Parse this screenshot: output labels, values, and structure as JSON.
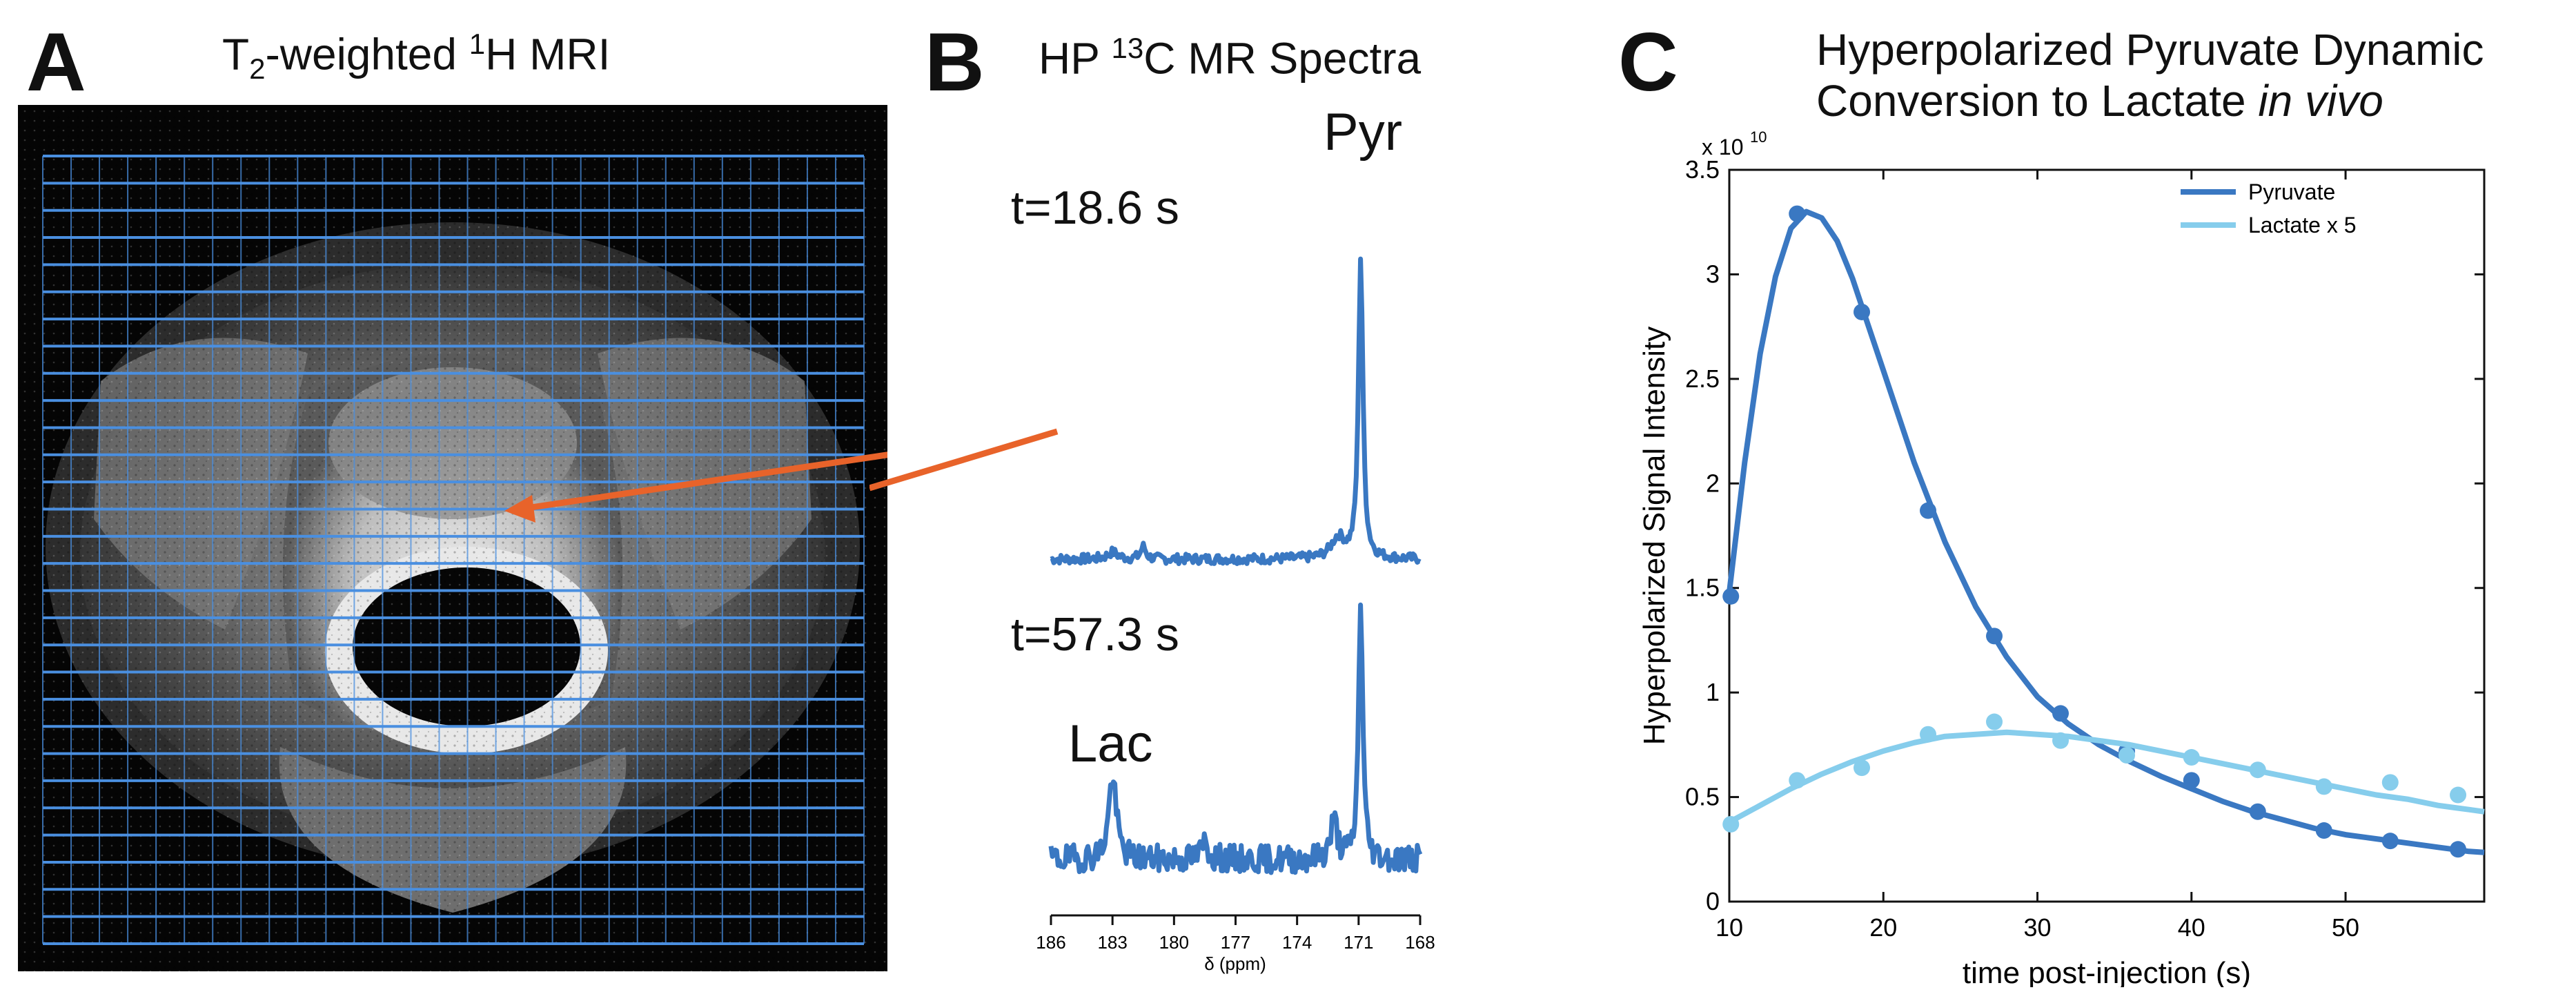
{
  "panels": {
    "a": {
      "letter": "A",
      "title_pre": "T",
      "title_sub": "2",
      "title_mid": "-weighted ",
      "title_sup": "1",
      "title_post": "H MRI"
    },
    "b": {
      "letter": "B",
      "title_pre": "HP ",
      "title_sup": "13",
      "title_post": "C MR Spectra",
      "peak_pyr": "Pyr",
      "peak_lac": "Lac",
      "time_1": "t=18.6 s",
      "time_2": "t=57.3 s",
      "axis_label": "δ (ppm)",
      "ticks": [
        "186",
        "183",
        "180",
        "177",
        "174",
        "171",
        "168"
      ]
    },
    "c": {
      "letter": "C",
      "title_line1": "Hyperpolarized Pyruvate Dynamic",
      "title_line2_pre": "Conversion to Lactate ",
      "title_line2_em": "in vivo"
    }
  },
  "colors": {
    "pyruvate": "#3a78c2",
    "lactate": "#86cdec",
    "arrow": "#e8632a",
    "grid": "#4a8fe0"
  },
  "chart_data": {
    "type": "line",
    "title": "Hyperpolarized Pyruvate Dynamic Conversion to Lactate in vivo",
    "xlabel": "time post-injection (s)",
    "ylabel": "Hyperpolarized Signal Intensity",
    "y_multiplier": "x 10",
    "y_multiplier_exp": "10",
    "xlim": [
      10,
      59
    ],
    "ylim": [
      0,
      3.5
    ],
    "x_ticks": [
      10,
      20,
      30,
      40,
      50
    ],
    "x_tick_labels": [
      "10",
      "20",
      "30",
      "40",
      "50"
    ],
    "y_ticks": [
      0,
      0.5,
      1,
      1.5,
      2,
      2.5,
      3,
      3.5
    ],
    "y_tick_labels": [
      "0",
      "0.5",
      "1",
      "1.5",
      "2",
      "2.5",
      "3",
      "3.5"
    ],
    "legend_position": "top-right",
    "series": [
      {
        "name": "Pyruvate",
        "color": "#3a78c2",
        "points_x": [
          10.1,
          14.4,
          18.6,
          22.9,
          27.2,
          31.5,
          35.8,
          40.0,
          44.3,
          48.6,
          52.9,
          57.3
        ],
        "points_y": [
          1.46,
          3.29,
          2.82,
          1.87,
          1.27,
          0.9,
          0.72,
          0.58,
          0.43,
          0.34,
          0.29,
          0.25
        ],
        "fit_x": [
          10,
          11,
          12,
          13,
          14,
          15,
          16,
          17,
          18,
          19,
          20,
          22,
          24,
          26,
          28,
          30,
          32,
          34,
          36,
          38,
          40,
          42,
          44,
          46,
          48,
          50,
          52,
          54,
          56,
          58,
          59
        ],
        "fit_y": [
          1.48,
          2.1,
          2.62,
          2.99,
          3.22,
          3.3,
          3.27,
          3.16,
          2.98,
          2.76,
          2.54,
          2.1,
          1.72,
          1.41,
          1.17,
          0.98,
          0.85,
          0.75,
          0.67,
          0.6,
          0.54,
          0.48,
          0.43,
          0.39,
          0.35,
          0.32,
          0.3,
          0.28,
          0.26,
          0.24,
          0.235
        ]
      },
      {
        "name": "Lactate x 5",
        "color": "#86cdec",
        "points_x": [
          10.1,
          14.4,
          18.6,
          22.9,
          27.2,
          31.5,
          35.8,
          40.0,
          44.3,
          48.6,
          52.9,
          57.3
        ],
        "points_y": [
          0.37,
          0.58,
          0.64,
          0.8,
          0.86,
          0.77,
          0.7,
          0.69,
          0.63,
          0.55,
          0.57,
          0.51
        ],
        "fit_x": [
          10,
          12,
          14,
          16,
          18,
          20,
          22,
          24,
          26,
          28,
          30,
          32,
          34,
          36,
          38,
          40,
          42,
          44,
          46,
          48,
          50,
          52,
          54,
          56,
          58,
          59
        ],
        "fit_y": [
          0.38,
          0.46,
          0.54,
          0.61,
          0.67,
          0.72,
          0.76,
          0.79,
          0.8,
          0.81,
          0.8,
          0.79,
          0.77,
          0.75,
          0.72,
          0.69,
          0.66,
          0.63,
          0.6,
          0.57,
          0.54,
          0.51,
          0.49,
          0.46,
          0.44,
          0.43
        ]
      }
    ]
  }
}
